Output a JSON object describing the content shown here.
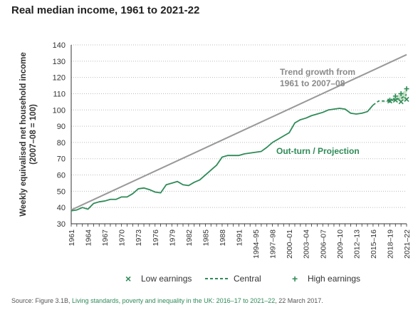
{
  "chart_data": {
    "type": "line",
    "title": "Real median income, 1961 to 2021-22",
    "ylabel": "Weekly equivalised net household income (2007–08 = 100)",
    "ylim": [
      30,
      140
    ],
    "yticks": [
      30,
      40,
      50,
      60,
      70,
      80,
      90,
      100,
      110,
      120,
      130,
      140
    ],
    "xlim": [
      1961,
      2021
    ],
    "xticks": [
      {
        "x": 1961,
        "label": "1961"
      },
      {
        "x": 1964,
        "label": "1964"
      },
      {
        "x": 1967,
        "label": "1967"
      },
      {
        "x": 1970,
        "label": "1970"
      },
      {
        "x": 1973,
        "label": "1973"
      },
      {
        "x": 1976,
        "label": "1976"
      },
      {
        "x": 1979,
        "label": "1979"
      },
      {
        "x": 1982,
        "label": "1982"
      },
      {
        "x": 1985,
        "label": "1985"
      },
      {
        "x": 1988,
        "label": "1988"
      },
      {
        "x": 1991,
        "label": "1991"
      },
      {
        "x": 1994,
        "label": "1994–95"
      },
      {
        "x": 1997,
        "label": "1997–98"
      },
      {
        "x": 2000,
        "label": "2000–01"
      },
      {
        "x": 2003,
        "label": "2003–04"
      },
      {
        "x": 2006,
        "label": "2006–07"
      },
      {
        "x": 2009,
        "label": "2009–10"
      },
      {
        "x": 2012,
        "label": "2012–13"
      },
      {
        "x": 2015,
        "label": "2015–16"
      },
      {
        "x": 2018,
        "label": "2018–19"
      },
      {
        "x": 2021,
        "label": "2021–22"
      }
    ],
    "grid": "horizontal-dotted",
    "colors": {
      "outturn": "#2e8b57",
      "trend": "#999999",
      "band": "#9ccc9c",
      "axis": "#333333",
      "grid": "#bbbbbb"
    },
    "annotations": {
      "trend_label_1": "Trend growth from",
      "trend_label_2": "1961 to 2007–08",
      "outturn_label": "Out-turn / Projection"
    },
    "legend": {
      "placement": "bottom",
      "items": [
        {
          "symbol": "×",
          "label": "Low earnings"
        },
        {
          "symbol": "dash",
          "label": "Central"
        },
        {
          "symbol": "+",
          "label": "High earnings"
        }
      ]
    },
    "trend": {
      "x": [
        1961,
        2021
      ],
      "y": [
        38.5,
        134
      ]
    },
    "outturn": {
      "x": [
        1961,
        1962,
        1963,
        1964,
        1965,
        1966,
        1967,
        1968,
        1969,
        1970,
        1971,
        1972,
        1973,
        1974,
        1975,
        1976,
        1977,
        1978,
        1979,
        1980,
        1981,
        1982,
        1983,
        1984,
        1985,
        1986,
        1987,
        1988,
        1989,
        1990,
        1991,
        1992,
        1993,
        1994,
        1995,
        1996,
        1997,
        1998,
        1999,
        2000,
        2001,
        2002,
        2003,
        2004,
        2005,
        2006,
        2007,
        2008,
        2009,
        2010,
        2011,
        2012,
        2013,
        2014,
        2015
      ],
      "y": [
        38,
        38.5,
        40,
        39,
        42.5,
        43.5,
        44,
        45,
        45,
        46.5,
        46.5,
        48.5,
        51.5,
        52,
        51,
        49.5,
        49,
        54,
        55,
        56,
        54,
        53.5,
        55.5,
        57,
        60,
        63,
        66,
        71,
        72,
        72,
        72,
        73,
        73.5,
        74,
        74.5,
        77,
        80,
        82,
        84,
        86,
        92,
        94,
        95,
        96.5,
        97.5,
        98.5,
        100,
        100.5,
        101,
        100.5,
        98,
        97.5,
        98,
        99,
        103
      ]
    },
    "central": {
      "x": [
        2015,
        2016,
        2017,
        2018,
        2019,
        2020,
        2021
      ],
      "y": [
        103,
        105.5,
        105.5,
        105.5,
        106.5,
        107,
        109.5
      ]
    },
    "low_earnings": {
      "x": [
        2018,
        2019,
        2020,
        2021
      ],
      "y": [
        105.5,
        106,
        105,
        106.5
      ]
    },
    "high_earnings": {
      "x": [
        2018,
        2019,
        2020,
        2021
      ],
      "y": [
        106,
        108.5,
        110,
        113
      ]
    }
  },
  "source": {
    "prefix": "Source: Figure 3.1B, ",
    "link": "Living standards, poverty and inequality in the UK: 2016–17 to 2021–22",
    "suffix": ", 22 March 2017."
  }
}
